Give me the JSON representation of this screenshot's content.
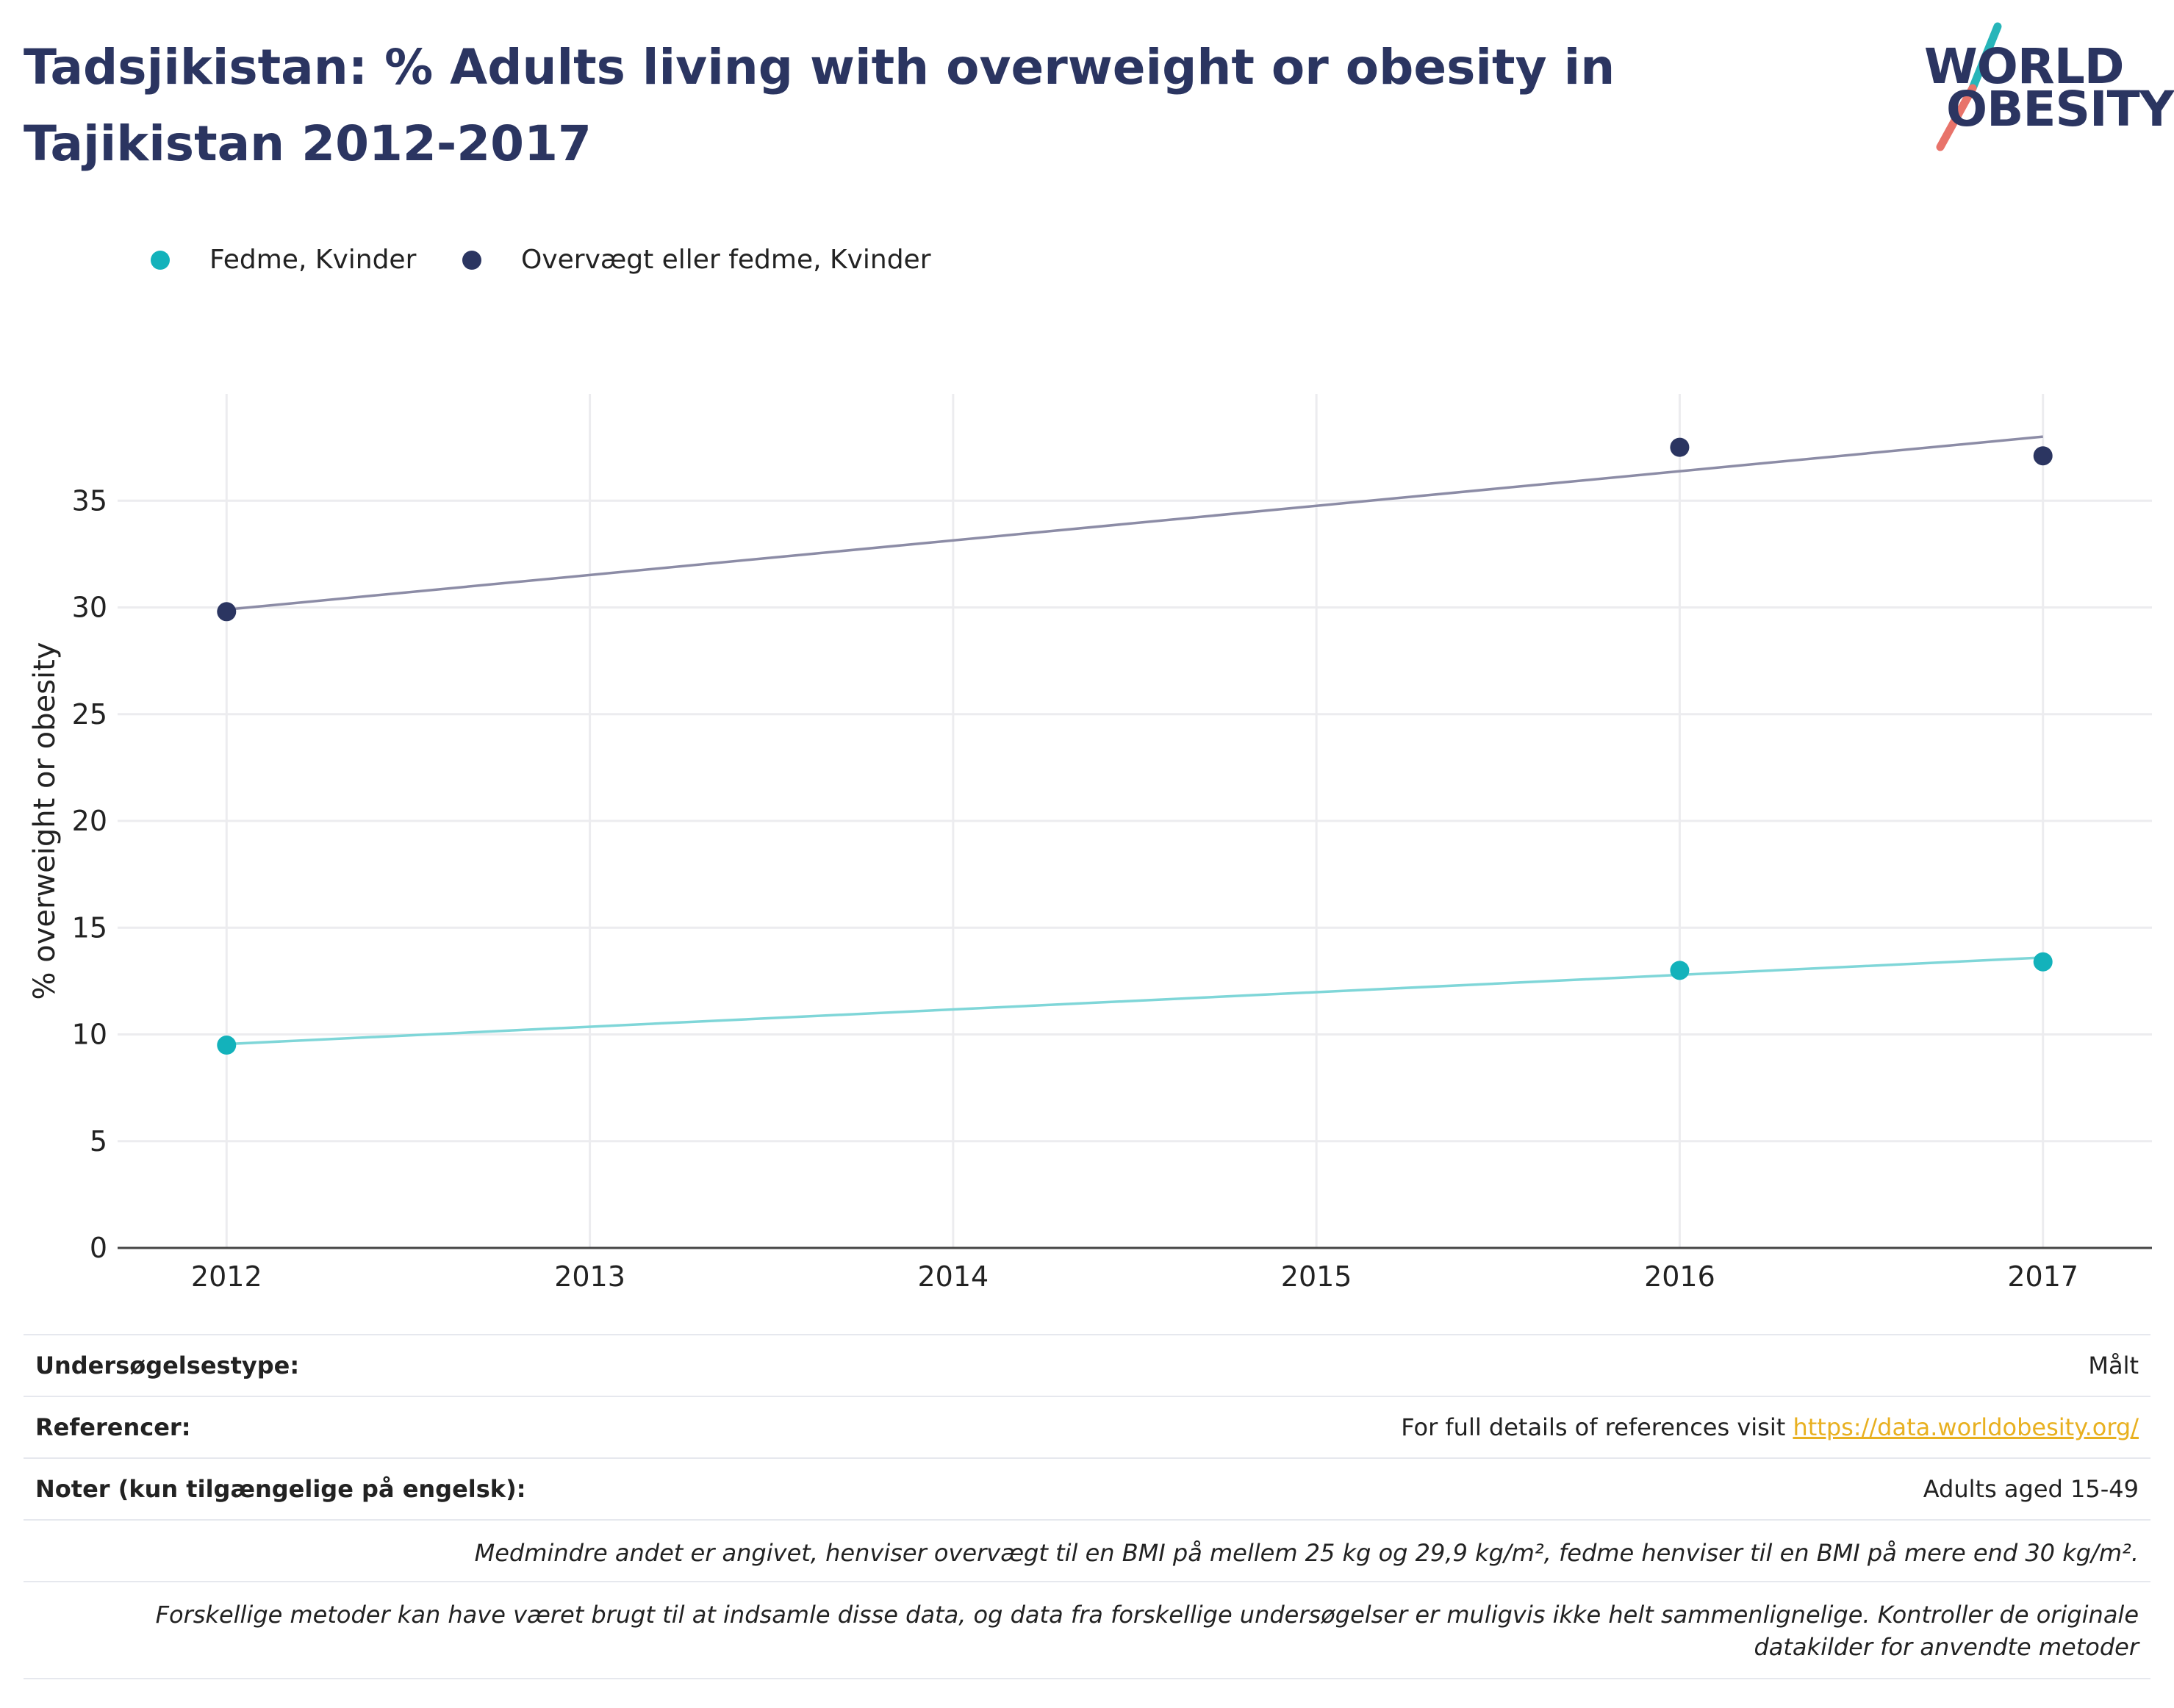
{
  "header": {
    "title": "Tadsjikistan: % Adults living with overweight or obesity in Tajikistan 2012-2017",
    "logo_line1": "WORLD",
    "logo_line2": "OBESITY"
  },
  "colors": {
    "title": "#2b3561",
    "series_obesity": "#13b2bb",
    "series_overweight": "#2b3561",
    "trend_obesity": "#7fd6d8",
    "trend_overweight": "#8c8ca6",
    "logo_teal": "#27b5b9",
    "logo_coral": "#e8736a",
    "link": "#e8b020"
  },
  "legend": [
    {
      "label": "Fedme, Kvinder",
      "color": "#13b2bb"
    },
    {
      "label": "Overvægt eller fedme, Kvinder",
      "color": "#2b3561"
    }
  ],
  "chart_data": {
    "type": "scatter",
    "xlabel": "",
    "ylabel": "% overweight or obesity",
    "x_ticks": [
      2012,
      2013,
      2014,
      2015,
      2016,
      2017
    ],
    "y_ticks": [
      0,
      5,
      10,
      15,
      20,
      25,
      30,
      35
    ],
    "xlim": [
      2011.7,
      2017.3
    ],
    "ylim": [
      0,
      40
    ],
    "grid": true,
    "legend_position": "top-left",
    "series": [
      {
        "name": "Fedme, Kvinder",
        "color": "#13b2bb",
        "points": [
          {
            "x": 2012,
            "y": 9.5
          },
          {
            "x": 2016,
            "y": 13.0
          },
          {
            "x": 2017,
            "y": 13.4
          }
        ],
        "trend": [
          {
            "x": 2012,
            "y": 9.55
          },
          {
            "x": 2017,
            "y": 13.6
          }
        ]
      },
      {
        "name": "Overvægt eller fedme, Kvinder",
        "color": "#2b3561",
        "points": [
          {
            "x": 2012,
            "y": 29.8
          },
          {
            "x": 2016,
            "y": 37.5
          },
          {
            "x": 2017,
            "y": 37.1
          }
        ],
        "trend": [
          {
            "x": 2012,
            "y": 29.9
          },
          {
            "x": 2017,
            "y": 38.0
          }
        ]
      }
    ]
  },
  "meta": {
    "survey_type_label": "Undersøgelsestype:",
    "survey_type_value": "Målt",
    "references_label": "Referencer:",
    "references_text": "For full details of references visit ",
    "references_link": "https://data.worldobesity.org/",
    "notes_label": "Noter (kun tilgængelige på engelsk):",
    "notes_value": "Adults aged 15-49",
    "definition_note": "Medmindre andet er angivet, henviser overvægt til en BMI på mellem 25 kg og 29,9 kg/m², fedme henviser til en BMI på mere end 30 kg/m².",
    "methods_note": "Forskellige metoder kan have været brugt til at indsamle disse data, og data fra forskellige undersøgelser er muligvis ikke helt sammenlignelige. Kontroller de originale datakilder for anvendte metoder"
  }
}
